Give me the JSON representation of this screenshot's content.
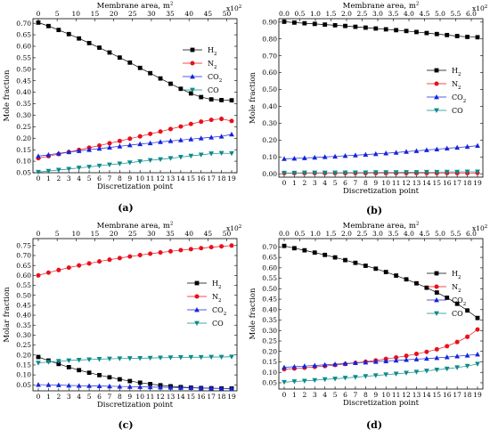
{
  "figure": {
    "panels": [
      "a",
      "b",
      "c",
      "d"
    ]
  },
  "chart_data": [
    {
      "type": "line",
      "panel_tag": "(a)",
      "xlabel": "Discretization point",
      "top_xlabel": "Membrane area, m",
      "top_xlabel_sup": "2",
      "top_multiplier": "x10",
      "top_multiplier_sup": "2",
      "ylabel": "Mole fraction",
      "x": [
        0,
        1,
        2,
        3,
        4,
        5,
        6,
        7,
        8,
        9,
        10,
        11,
        12,
        13,
        14,
        15,
        16,
        17,
        18,
        19
      ],
      "xlim": [
        0,
        19
      ],
      "x_ticks": [
        "0",
        "1",
        "2",
        "3",
        "4",
        "5",
        "6",
        "7",
        "8",
        "9",
        "10",
        "11",
        "12",
        "13",
        "14",
        "15",
        "16",
        "17",
        "18",
        "19"
      ],
      "ylim": [
        0.05,
        0.72
      ],
      "y_ticks": [
        0.05,
        0.1,
        0.15,
        0.2,
        0.25,
        0.3,
        0.35,
        0.4,
        0.45,
        0.5,
        0.55,
        0.6,
        0.65,
        0.7
      ],
      "y_tick_labels": [
        "0.05",
        "0.10",
        "0.15",
        "0.20",
        "0.25",
        "0.30",
        "0.35",
        "0.40",
        "0.45",
        "0.50",
        "0.55",
        "0.60",
        "0.65",
        "0.70"
      ],
      "top_range": [
        0,
        51.3
      ],
      "top_ticks": [
        0,
        5,
        10,
        15,
        20,
        25,
        30,
        35,
        40,
        45,
        50
      ],
      "top_tick_labels": [
        "0",
        "5",
        "10",
        "15",
        "20",
        "25",
        "30",
        "35",
        "40",
        "45",
        "50"
      ],
      "legend_position": "right, upper-middle",
      "series": [
        {
          "name": "H",
          "subscript": "2",
          "color": "#000000",
          "marker": "square",
          "values": [
            0.703,
            0.688,
            0.671,
            0.653,
            0.634,
            0.614,
            0.594,
            0.573,
            0.551,
            0.529,
            0.506,
            0.483,
            0.46,
            0.437,
            0.415,
            0.395,
            0.379,
            0.369,
            0.366,
            0.365
          ]
        },
        {
          "name": "N",
          "subscript": "2",
          "color": "#e8101a",
          "marker": "circle",
          "values": [
            0.113,
            0.122,
            0.131,
            0.14,
            0.149,
            0.159,
            0.168,
            0.178,
            0.188,
            0.198,
            0.208,
            0.219,
            0.229,
            0.24,
            0.251,
            0.262,
            0.272,
            0.28,
            0.284,
            0.275
          ]
        },
        {
          "name": "CO",
          "subscript": "2",
          "color": "#1525d8",
          "marker": "triangle-up",
          "values": [
            0.122,
            0.128,
            0.134,
            0.14,
            0.145,
            0.15,
            0.155,
            0.16,
            0.165,
            0.17,
            0.175,
            0.179,
            0.184,
            0.188,
            0.192,
            0.196,
            0.2,
            0.204,
            0.208,
            0.217
          ]
        },
        {
          "name": "CO",
          "subscript": "",
          "color": "#0c8a8a",
          "marker": "triangle-down",
          "values": [
            0.053,
            0.057,
            0.062,
            0.066,
            0.071,
            0.075,
            0.08,
            0.085,
            0.089,
            0.094,
            0.099,
            0.104,
            0.108,
            0.113,
            0.118,
            0.123,
            0.128,
            0.133,
            0.135,
            0.134
          ]
        }
      ]
    },
    {
      "type": "line",
      "panel_tag": "(b)",
      "xlabel": "Discretization point",
      "top_xlabel": "Membrane area, m",
      "top_xlabel_sup": "2",
      "top_multiplier": "x10",
      "top_multiplier_sup": "2",
      "ylabel": "Mole fraction",
      "x": [
        0,
        1,
        2,
        3,
        4,
        5,
        6,
        7,
        8,
        9,
        10,
        11,
        12,
        13,
        14,
        15,
        16,
        17,
        18,
        19
      ],
      "xlim": [
        0,
        19
      ],
      "x_ticks": [
        "0",
        "1",
        "2",
        "3",
        "4",
        "5",
        "6",
        "7",
        "8",
        "9",
        "10",
        "11",
        "12",
        "13",
        "14",
        "15",
        "16",
        "17",
        "18",
        "19"
      ],
      "ylim": [
        -0.02,
        0.92
      ],
      "y_ticks": [
        0.0,
        0.1,
        0.2,
        0.3,
        0.4,
        0.5,
        0.6,
        0.7,
        0.8,
        0.9
      ],
      "y_tick_labels": [
        "0.00",
        "0.10",
        "0.20",
        "0.30",
        "0.40",
        "0.50",
        "0.60",
        "0.70",
        "0.80",
        "0.90"
      ],
      "top_range": [
        0,
        6.2
      ],
      "top_ticks": [
        0,
        0.5,
        1.0,
        1.5,
        2.0,
        2.5,
        3.0,
        3.5,
        4.0,
        4.5,
        5.0,
        5.5,
        6.0
      ],
      "top_tick_labels": [
        "0.0",
        "0.5",
        "1.0",
        "1.5",
        "2.0",
        "2.5",
        "3.0",
        "3.5",
        "4.0",
        "4.5",
        "5.0",
        "5.5",
        "6.0"
      ],
      "legend_position": "right, middle",
      "series": [
        {
          "name": "H",
          "subscript": "2",
          "color": "#000000",
          "marker": "square",
          "values": [
            0.902,
            0.897,
            0.893,
            0.889,
            0.885,
            0.881,
            0.877,
            0.872,
            0.867,
            0.862,
            0.857,
            0.852,
            0.847,
            0.841,
            0.835,
            0.829,
            0.823,
            0.817,
            0.812,
            0.81
          ]
        },
        {
          "name": "N",
          "subscript": "2",
          "color": "#e8101a",
          "marker": "circle",
          "values": [
            0.004,
            0.004,
            0.004,
            0.004,
            0.004,
            0.004,
            0.004,
            0.004,
            0.004,
            0.004,
            0.004,
            0.004,
            0.004,
            0.004,
            0.004,
            0.004,
            0.004,
            0.004,
            0.004,
            0.005
          ]
        },
        {
          "name": "CO",
          "subscript": "2",
          "color": "#1525d8",
          "marker": "triangle-up",
          "values": [
            0.089,
            0.091,
            0.094,
            0.097,
            0.1,
            0.103,
            0.107,
            0.11,
            0.114,
            0.118,
            0.122,
            0.126,
            0.131,
            0.136,
            0.141,
            0.146,
            0.151,
            0.156,
            0.161,
            0.167
          ]
        },
        {
          "name": "CO",
          "subscript": "",
          "color": "#0c8a8a",
          "marker": "triangle-down",
          "values": [
            0.005,
            0.005,
            0.006,
            0.006,
            0.006,
            0.006,
            0.007,
            0.007,
            0.007,
            0.008,
            0.008,
            0.008,
            0.009,
            0.009,
            0.01,
            0.01,
            0.011,
            0.011,
            0.012,
            0.012
          ]
        }
      ]
    },
    {
      "type": "line",
      "panel_tag": "(c)",
      "xlabel": "Discretization point",
      "top_xlabel": "Membrane area, m",
      "top_xlabel_sup": "2",
      "top_multiplier": "x10",
      "top_multiplier_sup": "2",
      "ylabel": "Molar fraction",
      "x": [
        0,
        1,
        2,
        3,
        4,
        5,
        6,
        7,
        8,
        9,
        10,
        11,
        12,
        13,
        14,
        15,
        16,
        17,
        18,
        19
      ],
      "xlim": [
        0,
        19
      ],
      "x_ticks": [
        "0",
        "1",
        "2",
        "3",
        "4",
        "5",
        "6",
        "7",
        "8",
        "9",
        "10",
        "11",
        "12",
        "13",
        "14",
        "15",
        "16",
        "17",
        "18",
        "19"
      ],
      "ylim": [
        0.02,
        0.785
      ],
      "y_ticks": [
        0.05,
        0.1,
        0.15,
        0.2,
        0.25,
        0.3,
        0.35,
        0.4,
        0.45,
        0.5,
        0.55,
        0.6,
        0.65,
        0.7,
        0.75
      ],
      "y_tick_labels": [
        "0.05",
        "0.10",
        "0.15",
        "0.20",
        "0.25",
        "0.30",
        "0.35",
        "0.40",
        "0.45",
        "0.50",
        "0.55",
        "0.60",
        "0.65",
        "0.70",
        "0.75"
      ],
      "top_range": [
        0,
        51.3
      ],
      "top_ticks": [
        0,
        5,
        10,
        15,
        20,
        25,
        30,
        35,
        40,
        45,
        50
      ],
      "top_tick_labels": [
        "0",
        "5",
        "10",
        "15",
        "20",
        "25",
        "30",
        "35",
        "40",
        "45",
        "50"
      ],
      "legend_position": "right, middle",
      "series": [
        {
          "name": "H",
          "subscript": "2",
          "color": "#000000",
          "marker": "square",
          "values": [
            0.19,
            0.172,
            0.155,
            0.139,
            0.124,
            0.111,
            0.099,
            0.088,
            0.078,
            0.069,
            0.061,
            0.054,
            0.048,
            0.043,
            0.039,
            0.036,
            0.034,
            0.033,
            0.032,
            0.032
          ]
        },
        {
          "name": "N",
          "subscript": "2",
          "color": "#e8101a",
          "marker": "circle",
          "values": [
            0.6,
            0.614,
            0.627,
            0.639,
            0.65,
            0.66,
            0.67,
            0.679,
            0.687,
            0.695,
            0.702,
            0.709,
            0.715,
            0.721,
            0.727,
            0.732,
            0.737,
            0.742,
            0.746,
            0.75
          ]
        },
        {
          "name": "CO",
          "subscript": "2",
          "color": "#1525d8",
          "marker": "triangle-up",
          "values": [
            0.051,
            0.05,
            0.049,
            0.047,
            0.046,
            0.045,
            0.044,
            0.043,
            0.042,
            0.041,
            0.04,
            0.039,
            0.038,
            0.037,
            0.036,
            0.035,
            0.034,
            0.033,
            0.032,
            0.031
          ]
        },
        {
          "name": "CO",
          "subscript": "",
          "color": "#0c8a8a",
          "marker": "triangle-down",
          "values": [
            0.16,
            0.165,
            0.169,
            0.172,
            0.175,
            0.177,
            0.179,
            0.181,
            0.182,
            0.183,
            0.184,
            0.185,
            0.186,
            0.187,
            0.188,
            0.189,
            0.189,
            0.19,
            0.19,
            0.191
          ]
        }
      ]
    },
    {
      "type": "line",
      "panel_tag": "(d)",
      "xlabel": "Discretization point",
      "top_xlabel": "Membrane area, m",
      "top_xlabel_sup": "2",
      "top_multiplier": "x10",
      "top_multiplier_sup": "2",
      "ylabel": "Mole fraction",
      "x": [
        0,
        1,
        2,
        3,
        4,
        5,
        6,
        7,
        8,
        9,
        10,
        11,
        12,
        13,
        14,
        15,
        16,
        17,
        18,
        19
      ],
      "xlim": [
        0,
        19
      ],
      "x_ticks": [
        "0",
        "1",
        "2",
        "3",
        "4",
        "5",
        "6",
        "7",
        "8",
        "9",
        "10",
        "11",
        "12",
        "13",
        "14",
        "15",
        "16",
        "17",
        "18",
        "19"
      ],
      "ylim": [
        0.02,
        0.74
      ],
      "y_ticks": [
        0.05,
        0.1,
        0.15,
        0.2,
        0.25,
        0.3,
        0.35,
        0.4,
        0.45,
        0.5,
        0.55,
        0.6,
        0.65,
        0.7
      ],
      "y_tick_labels": [
        "0.05",
        "0.10",
        "0.15",
        "0.20",
        "0.25",
        "0.30",
        "0.35",
        "0.40",
        "0.45",
        "0.50",
        "0.55",
        "0.60",
        "0.65",
        "0.70"
      ],
      "top_range": [
        0,
        6.2
      ],
      "top_ticks": [
        0,
        0.5,
        1.0,
        1.5,
        2.0,
        2.5,
        3.0,
        3.5,
        4.0,
        4.5,
        5.0,
        5.5,
        6.0
      ],
      "top_tick_labels": [
        "0.0",
        "0.5",
        "1.0",
        "1.5",
        "2.0",
        "2.5",
        "3.0",
        "3.5",
        "4.0",
        "4.5",
        "5.0",
        "5.5",
        "6.0"
      ],
      "legend_position": "right, upper-middle",
      "series": [
        {
          "name": "H",
          "subscript": "2",
          "color": "#000000",
          "marker": "square",
          "values": [
            0.705,
            0.694,
            0.684,
            0.673,
            0.662,
            0.65,
            0.637,
            0.624,
            0.61,
            0.596,
            0.58,
            0.563,
            0.545,
            0.526,
            0.505,
            0.482,
            0.457,
            0.428,
            0.396,
            0.36
          ]
        },
        {
          "name": "N",
          "subscript": "2",
          "color": "#e8101a",
          "marker": "circle",
          "values": [
            0.115,
            0.118,
            0.122,
            0.126,
            0.13,
            0.135,
            0.14,
            0.145,
            0.151,
            0.157,
            0.164,
            0.171,
            0.179,
            0.188,
            0.198,
            0.21,
            0.225,
            0.245,
            0.27,
            0.305
          ]
        },
        {
          "name": "CO",
          "subscript": "2",
          "color": "#1525d8",
          "marker": "triangle-up",
          "values": [
            0.124,
            0.127,
            0.13,
            0.133,
            0.136,
            0.139,
            0.142,
            0.145,
            0.148,
            0.151,
            0.154,
            0.157,
            0.16,
            0.163,
            0.166,
            0.169,
            0.173,
            0.177,
            0.181,
            0.186
          ]
        },
        {
          "name": "CO",
          "subscript": "",
          "color": "#0c8a8a",
          "marker": "triangle-down",
          "values": [
            0.053,
            0.056,
            0.059,
            0.062,
            0.066,
            0.069,
            0.073,
            0.077,
            0.081,
            0.085,
            0.089,
            0.093,
            0.097,
            0.102,
            0.107,
            0.112,
            0.117,
            0.123,
            0.13,
            0.14
          ]
        }
      ]
    }
  ]
}
